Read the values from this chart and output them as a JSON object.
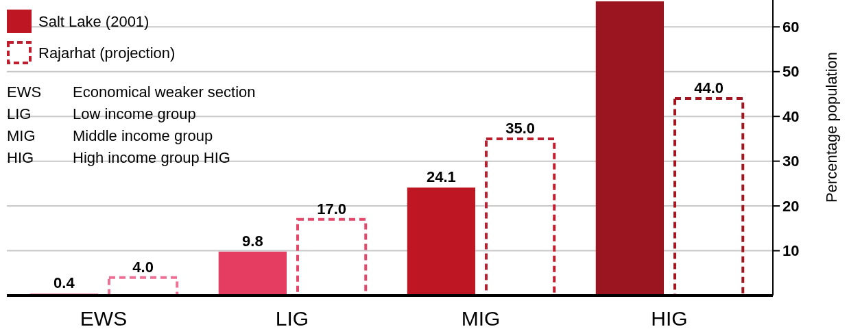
{
  "chart_data": {
    "type": "bar",
    "categories": [
      "EWS",
      "LIG",
      "MIG",
      "HIG"
    ],
    "series": [
      {
        "name": "Salt Lake (2001)",
        "color": "#be1622",
        "colors": [
          "#ea4f7a",
          "#e53c62",
          "#be1622",
          "#9b1520"
        ],
        "values": [
          0.4,
          9.8,
          24.1,
          65.7
        ],
        "value_labels": [
          "0.4",
          "9.8",
          "24.1",
          null
        ]
      },
      {
        "name": "Rajarhat (projection)",
        "color": "#be1e2d",
        "colors": [
          "#ee7196",
          "#e4476a",
          "#be1e2d",
          "#a3161f"
        ],
        "values": [
          4.0,
          17.0,
          35.0,
          44.0
        ],
        "value_labels": [
          "4.0",
          "17.0",
          "35.0",
          "44.0"
        ],
        "line_style": "dashed"
      }
    ],
    "ylabel": "Percentage population",
    "ylim": [
      0,
      66
    ],
    "yticks": [
      10,
      20,
      30,
      40,
      50,
      60
    ],
    "grid": "y",
    "legend": "top left",
    "annotations": [
      "EWS Economical weaker section",
      "LIG Low income group",
      "MIG Middle income group",
      "HIG High income group HIG"
    ]
  }
}
